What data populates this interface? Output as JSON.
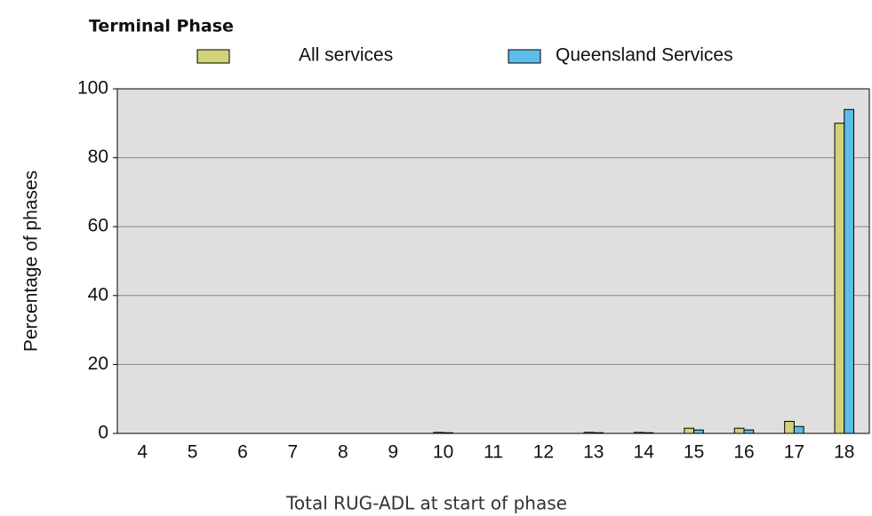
{
  "chart_data": {
    "type": "bar",
    "title": "Terminal Phase",
    "xlabel": "Total RUG-ADL at start of phase",
    "ylabel": "Percentage of phases",
    "categories": [
      "4",
      "5",
      "6",
      "7",
      "8",
      "9",
      "10",
      "11",
      "12",
      "13",
      "14",
      "15",
      "16",
      "17",
      "18"
    ],
    "series": [
      {
        "name": "All services",
        "color": "#d2d27a",
        "values": [
          0,
          0,
          0,
          0,
          0,
          0,
          0.3,
          0,
          0,
          0.3,
          0.3,
          1.5,
          1.5,
          3.5,
          90
        ]
      },
      {
        "name": "Queensland Services",
        "color": "#5cbde8",
        "values": [
          0,
          0,
          0,
          0,
          0,
          0,
          0.2,
          0,
          0,
          0.2,
          0.2,
          1,
          1,
          2,
          94
        ]
      }
    ],
    "ylim": [
      0,
      100
    ],
    "yticks": [
      0,
      20,
      40,
      60,
      80,
      100
    ],
    "grid": true
  }
}
